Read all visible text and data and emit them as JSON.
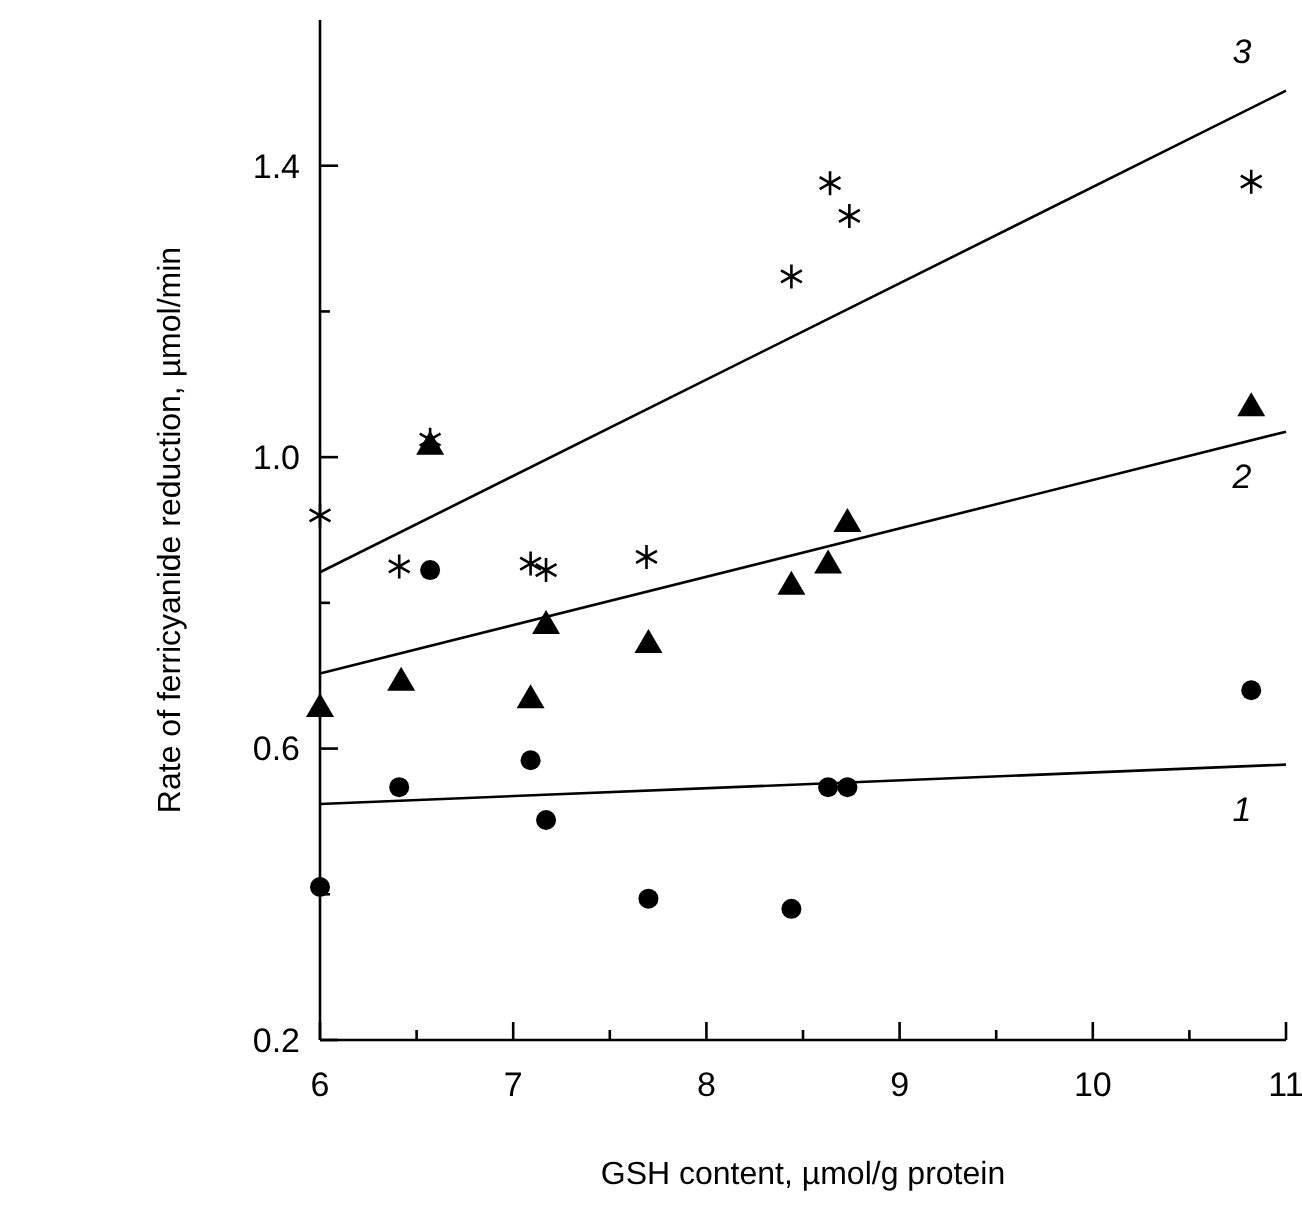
{
  "chart_data": {
    "type": "scatter",
    "xlabel": "GSH content, µmol/g protein",
    "ylabel": "Rate of ferricyanide reduction, µmol/min",
    "xlim": [
      6,
      11
    ],
    "ylim": [
      0.2,
      1.6
    ],
    "xticks": [
      6,
      {
        "value": 6.5,
        "label": null
      },
      7,
      {
        "value": 7.5,
        "label": null
      },
      8,
      {
        "value": 8.5,
        "label": null
      },
      9,
      {
        "value": 9.5,
        "label": null
      },
      10,
      {
        "value": 10.5,
        "label": null
      },
      11
    ],
    "yticks": [
      0.2,
      {
        "value": 0.4,
        "label": null
      },
      0.6,
      {
        "value": 0.8,
        "label": null
      },
      {
        "value": 1.0,
        "label": "1.0"
      },
      {
        "value": 1.2,
        "label": null
      },
      1.4
    ],
    "grid": false,
    "series": [
      {
        "marker": "circle",
        "color": "#000000",
        "x": [
          6.0,
          6.41,
          6.57,
          7.09,
          7.17,
          7.7,
          8.44,
          8.63,
          8.73,
          10.82
        ],
        "values": [
          0.41,
          0.547,
          0.845,
          0.584,
          0.502,
          0.394,
          0.38,
          0.547,
          0.547,
          0.68
        ]
      },
      {
        "marker": "triangle",
        "color": "#000000",
        "x": [
          6.0,
          6.42,
          6.57,
          7.09,
          7.17,
          7.7,
          8.44,
          8.63,
          8.73,
          10.82
        ],
        "values": [
          0.657,
          0.693,
          1.017,
          0.669,
          0.771,
          0.745,
          0.825,
          0.854,
          0.911,
          1.07
        ]
      },
      {
        "marker": "cross",
        "color": "#000000",
        "x": [
          6.0,
          6.41,
          6.57,
          7.09,
          7.17,
          7.69,
          8.44,
          8.64,
          8.74,
          10.82
        ],
        "values": [
          0.92,
          0.85,
          1.024,
          0.854,
          0.845,
          0.863,
          1.248,
          1.376,
          1.331,
          1.378
        ]
      },
      {
        "type": "line",
        "name": "1",
        "marker": "none",
        "line_style": "solid",
        "color": "#000000",
        "x": [
          6,
          11
        ],
        "values": [
          0.524,
          0.578
        ]
      },
      {
        "type": "line",
        "name": "2",
        "marker": "none",
        "line_style": "solid",
        "color": "#000000",
        "x": [
          6,
          11
        ],
        "values": [
          0.703,
          1.035
        ]
      },
      {
        "type": "line",
        "name": "3",
        "marker": "none",
        "line_style": "solid",
        "color": "#000000",
        "x": [
          6,
          11
        ],
        "values": [
          0.842,
          1.503
        ]
      }
    ]
  }
}
